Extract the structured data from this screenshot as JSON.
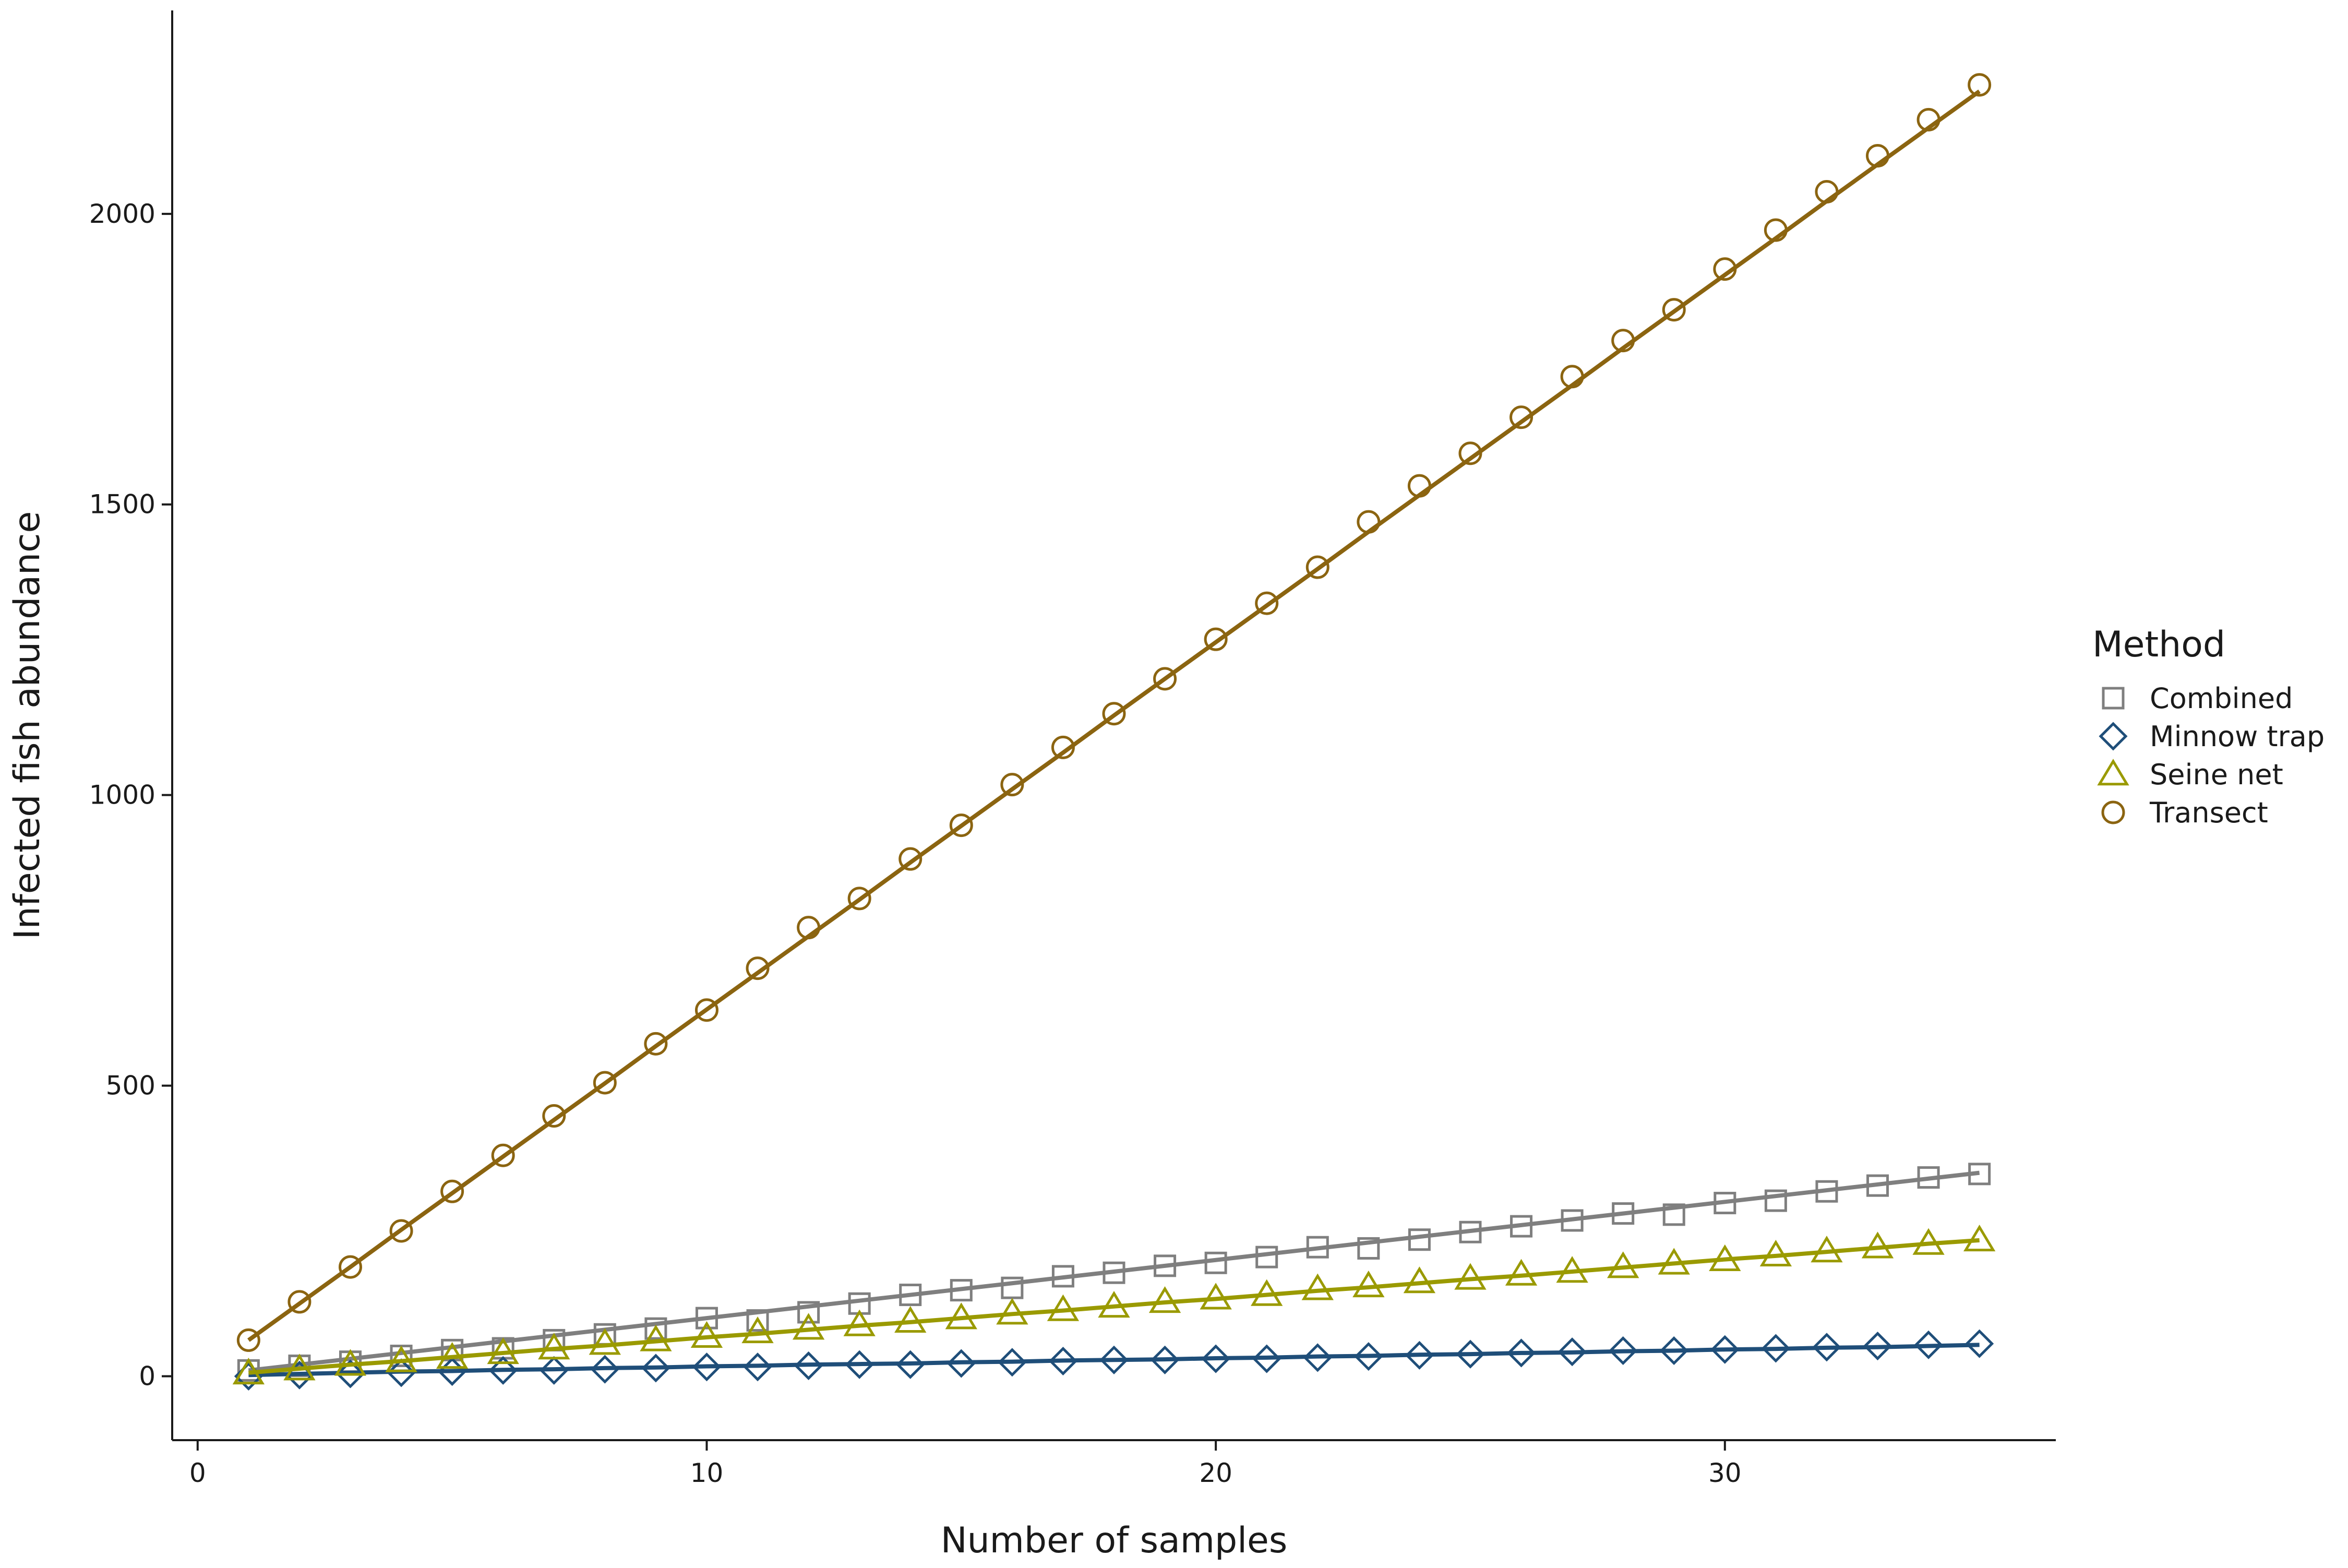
{
  "chart_data": {
    "type": "line",
    "title": "",
    "xlabel": "Number of samples",
    "ylabel": "Infected fish abundance",
    "xlim": [
      -0.5,
      36.5
    ],
    "ylim": [
      -110,
      2350
    ],
    "xticks": [
      0,
      10,
      20,
      30
    ],
    "yticks": [
      0,
      500,
      1000,
      1500,
      2000
    ],
    "grid": false,
    "legend": {
      "title": "Method",
      "placement": "right"
    },
    "x": [
      1,
      2,
      3,
      4,
      5,
      6,
      7,
      8,
      9,
      10,
      11,
      12,
      13,
      14,
      15,
      16,
      17,
      18,
      19,
      20,
      21,
      22,
      23,
      24,
      25,
      26,
      27,
      28,
      29,
      30,
      31,
      32,
      33,
      34,
      35
    ],
    "series": [
      {
        "name": "Combined",
        "marker": "square",
        "color": "#7f7f7f",
        "values": [
          10,
          18,
          25,
          35,
          45,
          48,
          62,
          72,
          82,
          100,
          96,
          110,
          125,
          140,
          148,
          152,
          172,
          178,
          190,
          195,
          205,
          222,
          220,
          235,
          248,
          258,
          268,
          280,
          278,
          298,
          302,
          318,
          328,
          342,
          348
        ],
        "fit": [
          10,
          20,
          30,
          40,
          50,
          60,
          70,
          80,
          90,
          100,
          110,
          120,
          130,
          140,
          150,
          160,
          170,
          180,
          190,
          200,
          210,
          220,
          230,
          240,
          250,
          260,
          270,
          280,
          290,
          300,
          310,
          320,
          330,
          340,
          350
        ]
      },
      {
        "name": "Minnow trap",
        "marker": "diamond",
        "color": "#1f4e79",
        "values": [
          0,
          2,
          4,
          6,
          8,
          10,
          10,
          12,
          14,
          16,
          16,
          18,
          20,
          20,
          22,
          24,
          26,
          28,
          28,
          30,
          30,
          32,
          34,
          36,
          38,
          40,
          42,
          44,
          44,
          46,
          48,
          50,
          52,
          54,
          56
        ],
        "fit": [
          2,
          4,
          6,
          8,
          9,
          11,
          12,
          14,
          15,
          17,
          18,
          20,
          21,
          22,
          24,
          25,
          27,
          28,
          29,
          31,
          32,
          34,
          35,
          37,
          38,
          40,
          41,
          43,
          44,
          46,
          47,
          49,
          50,
          52,
          54
        ]
      },
      {
        "name": "Seine net",
        "marker": "triangle",
        "color": "#9a9a00",
        "values": [
          5,
          12,
          20,
          26,
          32,
          40,
          48,
          56,
          62,
          68,
          76,
          82,
          88,
          94,
          100,
          108,
          114,
          120,
          128,
          134,
          140,
          150,
          155,
          162,
          168,
          175,
          180,
          188,
          194,
          200,
          208,
          215,
          222,
          228,
          234
        ],
        "fit": [
          6,
          13,
          20,
          26,
          33,
          40,
          47,
          53,
          60,
          67,
          73,
          80,
          87,
          93,
          100,
          107,
          113,
          120,
          127,
          133,
          140,
          147,
          153,
          160,
          167,
          173,
          180,
          187,
          194,
          201,
          207,
          214,
          221,
          228,
          234
        ]
      },
      {
        "name": "Transect",
        "marker": "circle",
        "color": "#8b6410",
        "values": [
          62,
          128,
          188,
          250,
          318,
          380,
          448,
          505,
          572,
          630,
          702,
          772,
          822,
          890,
          948,
          1018,
          1082,
          1140,
          1200,
          1268,
          1330,
          1392,
          1470,
          1532,
          1588,
          1650,
          1720,
          1782,
          1835,
          1905,
          1972,
          2038,
          2100,
          2162,
          2222
        ],
        "fit": [
          62,
          125,
          188,
          252,
          315,
          378,
          441,
          504,
          568,
          631,
          694,
          757,
          820,
          884,
          947,
          1010,
          1073,
          1137,
          1200,
          1263,
          1326,
          1389,
          1453,
          1516,
          1579,
          1642,
          1705,
          1769,
          1832,
          1895,
          1958,
          2022,
          2085,
          2148,
          2211
        ]
      }
    ]
  }
}
